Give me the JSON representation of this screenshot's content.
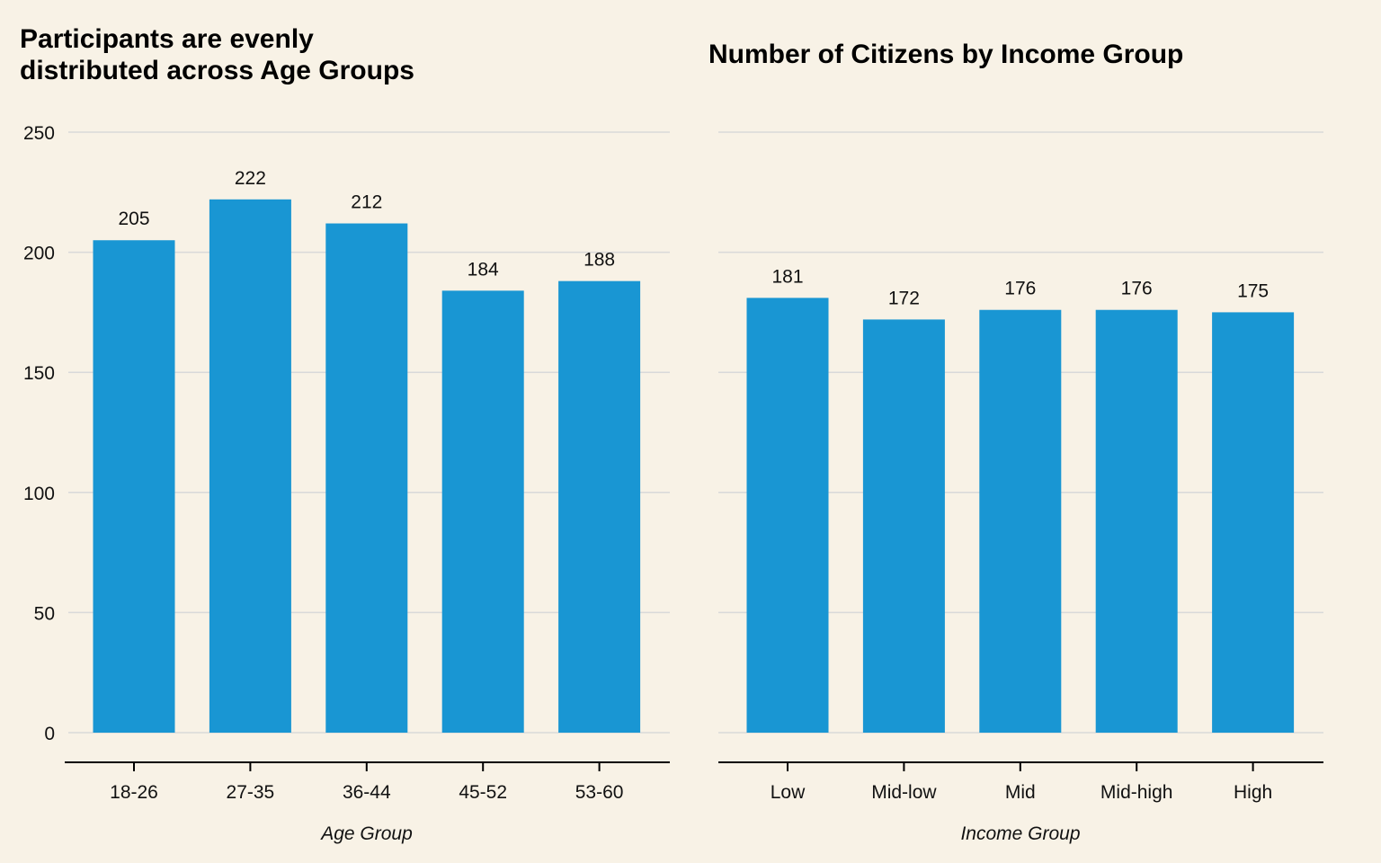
{
  "chart_data": [
    {
      "type": "bar",
      "title": "Participants are evenly\ndistributed across Age Groups",
      "xlabel": "Age Group",
      "ylabel": "",
      "categories": [
        "18-26",
        "27-35",
        "36-44",
        "45-52",
        "53-60"
      ],
      "values": [
        205,
        222,
        212,
        184,
        188
      ],
      "ylim": [
        0,
        250
      ],
      "yticks": [
        0,
        50,
        100,
        150,
        200,
        250
      ],
      "grid": true,
      "show_y_tick_labels": true,
      "data_labels": true,
      "bar_color": "#1996d3"
    },
    {
      "type": "bar",
      "title": "Number of Citizens by Income Group",
      "xlabel": "Income Group",
      "ylabel": "",
      "categories": [
        "Low",
        "Mid-low",
        "Mid",
        "Mid-high",
        "High"
      ],
      "values": [
        181,
        172,
        176,
        176,
        175
      ],
      "ylim": [
        0,
        250
      ],
      "yticks": [
        0,
        50,
        100,
        150,
        200,
        250
      ],
      "grid": true,
      "show_y_tick_labels": false,
      "data_labels": true,
      "bar_color": "#1996d3"
    }
  ],
  "colors": {
    "background": "#f8f2e6",
    "bar": "#1996d3",
    "grid": "#d9d9d9",
    "axis": "#000000",
    "text": "#111111"
  }
}
